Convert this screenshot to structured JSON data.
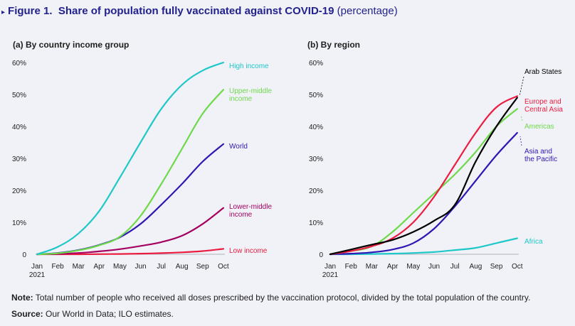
{
  "figure": {
    "label": "Figure 1.",
    "title": "Share of population fully vaccinated against COVID-19",
    "title_suffix": "(percentage)",
    "title_color": "#22228c"
  },
  "note": {
    "label": "Note:",
    "text": "Total number of people who received all doses prescribed by the vaccination protocol, divided by the total population of the country."
  },
  "source": {
    "label": "Source:",
    "text": "Our World in Data; ILO estimates."
  },
  "chart_data": [
    {
      "type": "line",
      "title": "(a) By country income group",
      "x": [
        "Jan\n2021",
        "Feb",
        "Mar",
        "Apr",
        "May",
        "Jun",
        "Jul",
        "Aug",
        "Sep",
        "Oct"
      ],
      "ylim": [
        0,
        60
      ],
      "yticks": [
        0,
        10,
        20,
        30,
        40,
        50,
        60
      ],
      "ytick_labels": [
        "0",
        "10%",
        "20%",
        "30%",
        "40%",
        "50%",
        "60%"
      ],
      "grid": false,
      "series": [
        {
          "name": "High income",
          "color": "#1ec8c8",
          "values": [
            0,
            2.3,
            6.5,
            13.5,
            24,
            35,
            45.5,
            53,
            57.5,
            60
          ]
        },
        {
          "name": "Upper-middle income",
          "color": "#6ed94a",
          "values": [
            0,
            0.3,
            1.2,
            2.8,
            5.5,
            12,
            22,
            33,
            44,
            51.5
          ]
        },
        {
          "name": "World",
          "color": "#2e18b4",
          "values": [
            0,
            0.4,
            1.3,
            2.9,
            5.3,
            9.5,
            15.5,
            22,
            29,
            34.5
          ]
        },
        {
          "name": "Lower-middle income",
          "color": "#a5005f",
          "values": [
            0,
            0.1,
            0.4,
            0.9,
            1.6,
            2.6,
            3.8,
            5.8,
            9.5,
            14.5
          ]
        },
        {
          "name": "Low income",
          "color": "#ea1c3f",
          "values": [
            0,
            0,
            0,
            0.05,
            0.1,
            0.2,
            0.35,
            0.6,
            1.0,
            1.7
          ]
        }
      ]
    },
    {
      "type": "line",
      "title": "(b) By region",
      "x": [
        "Jan\n2021",
        "Feb",
        "Mar",
        "Apr",
        "May",
        "Jun",
        "Jul",
        "Aug",
        "Sep",
        "Oct"
      ],
      "ylim": [
        0,
        60
      ],
      "yticks": [
        0,
        10,
        20,
        30,
        40,
        50,
        60
      ],
      "ytick_labels": [
        "0",
        "10%",
        "20%",
        "30%",
        "40%",
        "50%",
        "60%"
      ],
      "grid": false,
      "series": [
        {
          "name": "Arab States",
          "color": "#000000",
          "values": [
            0,
            1.5,
            3,
            4.5,
            7,
            10.5,
            15.5,
            29,
            40,
            49
          ]
        },
        {
          "name": "Europe and Central Asia",
          "color": "#ea1c3f",
          "values": [
            0,
            1,
            2.5,
            5,
            10,
            18,
            28,
            38,
            46,
            49.5
          ]
        },
        {
          "name": "Americas",
          "color": "#6ed94a",
          "values": [
            0,
            1,
            2.5,
            7,
            13,
            19,
            25,
            32,
            40,
            45.5
          ]
        },
        {
          "name": "Asia and the Pacific",
          "color": "#2e18b4",
          "values": [
            0,
            0.2,
            0.6,
            1.5,
            3.5,
            8,
            15,
            23,
            31,
            38
          ]
        },
        {
          "name": "Africa",
          "color": "#1ec8c8",
          "values": [
            0,
            0,
            0.1,
            0.2,
            0.4,
            0.7,
            1.3,
            2,
            3.5,
            5
          ]
        }
      ]
    }
  ]
}
